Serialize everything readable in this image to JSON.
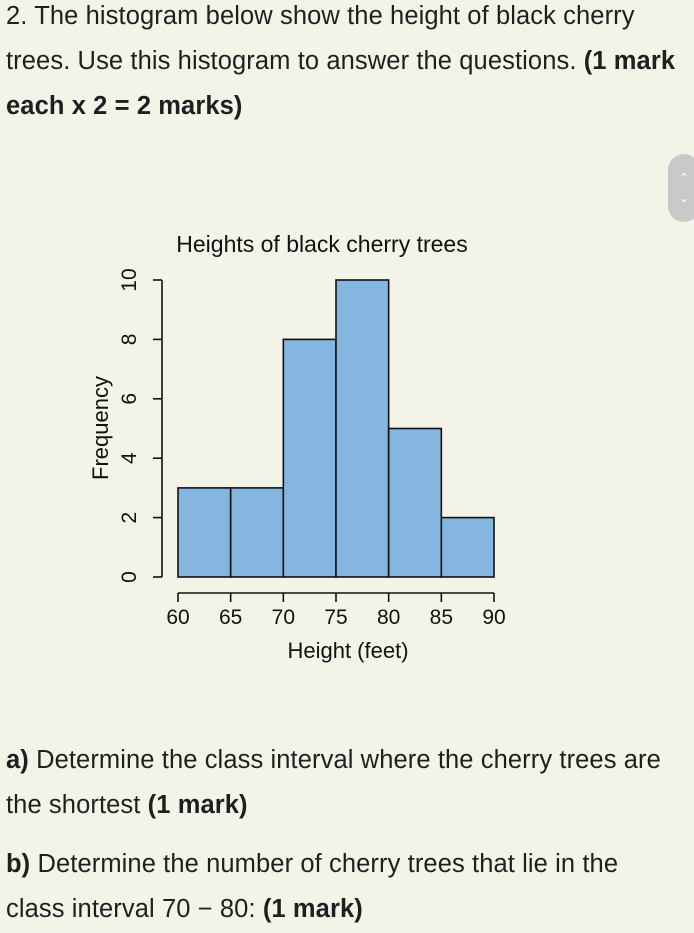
{
  "question": {
    "number": "2.",
    "text": "The histogram below show the height of black cherry trees. Use this histogram to answer the questions.",
    "marks": "(1 mark each x 2 = 2 marks)"
  },
  "part_a": {
    "label": "a)",
    "text": "Determine the class interval where the cherry trees are the shortest",
    "marks": "(1 mark)"
  },
  "part_b": {
    "label": "b)",
    "text": "Determine the number of cherry trees that lie in the class interval 70 − 80:",
    "marks": "(1 mark)"
  },
  "scroll": {
    "up_icon": "chevron-up-icon",
    "down_icon": "chevron-down-icon"
  },
  "chart_data": {
    "type": "bar",
    "title": "Heights of black cherry trees",
    "xlabel": "Height (feet)",
    "ylabel": "Frequency",
    "bins": [
      [
        60,
        65
      ],
      [
        65,
        70
      ],
      [
        70,
        75
      ],
      [
        75,
        80
      ],
      [
        80,
        85
      ],
      [
        85,
        90
      ]
    ],
    "values": [
      3,
      3,
      8,
      10,
      5,
      2
    ],
    "xticks": [
      60,
      65,
      70,
      75,
      80,
      85,
      90
    ],
    "yticks": [
      0,
      2,
      4,
      6,
      8,
      10
    ],
    "xlim": [
      60,
      90
    ],
    "ylim": [
      0,
      10
    ],
    "bar_color": "#85b6df",
    "edge_color": "#111111",
    "grid": false
  }
}
